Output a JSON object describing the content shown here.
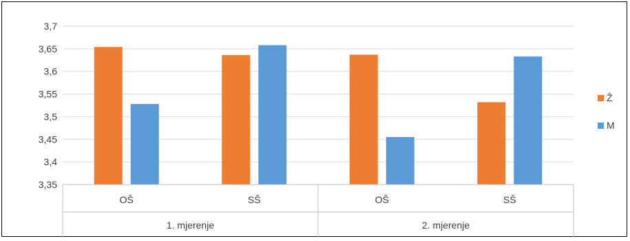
{
  "chart_data": {
    "type": "bar",
    "groups": [
      {
        "label": "1. mjerenje",
        "categories": [
          "OŠ",
          "SŠ"
        ]
      },
      {
        "label": "2. mjerenje",
        "categories": [
          "OŠ",
          "SŠ"
        ]
      }
    ],
    "categories": [
      "OŠ",
      "SŠ",
      "OŠ",
      "SŠ"
    ],
    "series": [
      {
        "name": "Ž",
        "color": "#ED7D31",
        "values": [
          3.654,
          3.636,
          3.637,
          3.532
        ]
      },
      {
        "name": "M",
        "color": "#5B9BD5",
        "values": [
          3.528,
          3.658,
          3.455,
          3.633
        ]
      }
    ],
    "ylim": [
      3.35,
      3.7
    ],
    "yticks": [
      "3,35",
      "3,4",
      "3,45",
      "3,5",
      "3,55",
      "3,6",
      "3,65",
      "3,7"
    ],
    "grid": true,
    "legend": "right"
  }
}
